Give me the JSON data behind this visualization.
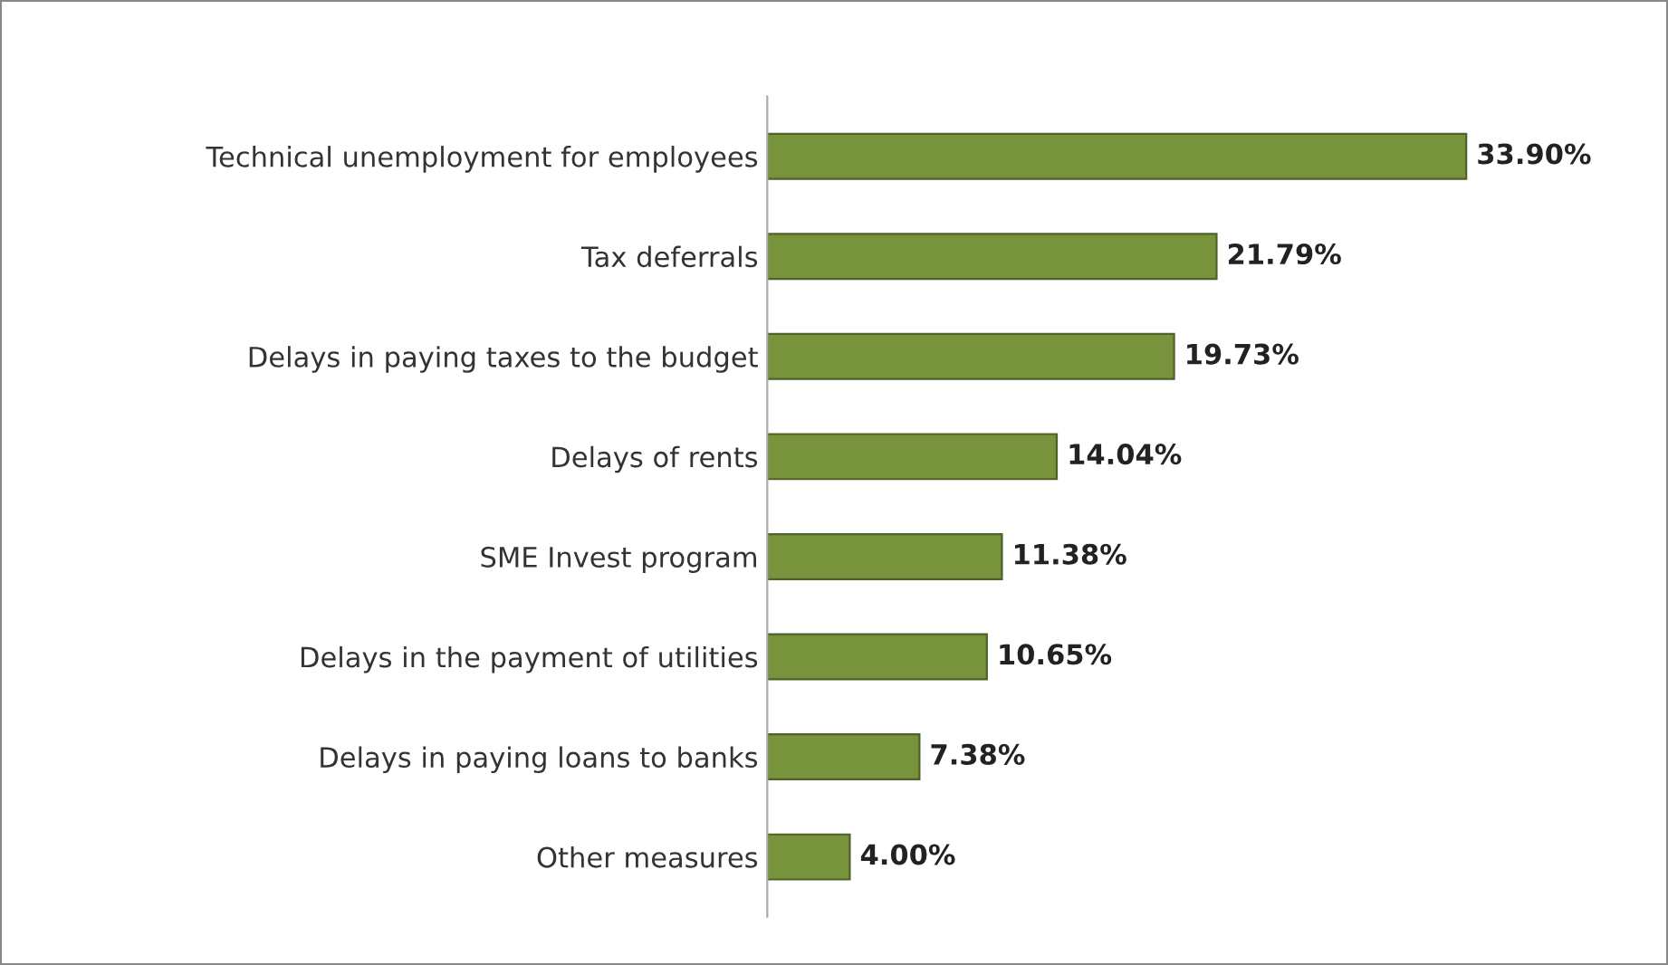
{
  "chart_data": {
    "type": "bar",
    "orientation": "horizontal",
    "categories": [
      "Technical unemployment for employees",
      "Tax deferrals",
      "Delays in paying taxes to the budget",
      "Delays of rents",
      "SME Invest program",
      "Delays in the payment of utilities",
      "Delays in paying loans to banks",
      "Other measures"
    ],
    "values": [
      33.9,
      21.79,
      19.73,
      14.04,
      11.38,
      10.65,
      7.38,
      4.0
    ],
    "value_labels": [
      "33.90%",
      "21.79%",
      "19.73%",
      "14.04%",
      "11.38%",
      "10.65%",
      "7.38%",
      "4.00%"
    ],
    "color": "#77933c",
    "tick_labels": "y"
  }
}
